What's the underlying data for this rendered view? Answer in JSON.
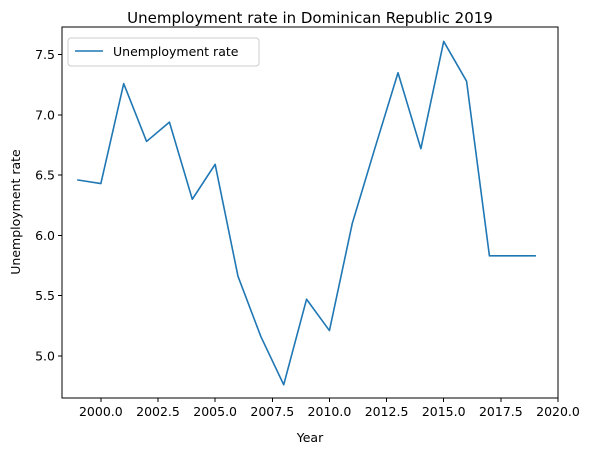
{
  "chart_data": {
    "type": "line",
    "title": "Unemployment rate in Dominican Republic 2019",
    "xlabel": "Year",
    "ylabel": "Unemployment rate",
    "xlim": [
      1998.3,
      2020.0
    ],
    "ylim": [
      4.65,
      7.73
    ],
    "xticks": [
      2000.0,
      2002.5,
      2005.0,
      2007.5,
      2010.0,
      2012.5,
      2015.0,
      2017.5,
      2020.0
    ],
    "xtick_labels": [
      "2000.0",
      "2002.5",
      "2005.0",
      "2007.5",
      "2010.0",
      "2012.5",
      "2015.0",
      "2017.5",
      "2020.0"
    ],
    "yticks": [
      5.0,
      5.5,
      6.0,
      6.5,
      7.0,
      7.5
    ],
    "ytick_labels": [
      "5.0",
      "5.5",
      "6.0",
      "6.5",
      "7.0",
      "7.5"
    ],
    "legend_position": "upper-left",
    "grid": false,
    "series": [
      {
        "name": "Unemployment rate",
        "color": "#1f77b4",
        "x": [
          1999,
          2000,
          2001,
          2002,
          2003,
          2004,
          2005,
          2006,
          2007,
          2008,
          2009,
          2010,
          2011,
          2012,
          2013,
          2014,
          2015,
          2016,
          2017,
          2018,
          2019
        ],
        "y": [
          6.46,
          6.43,
          7.26,
          6.78,
          6.94,
          6.3,
          6.59,
          5.66,
          5.16,
          4.76,
          5.47,
          5.21,
          6.1,
          6.73,
          7.35,
          6.72,
          7.61,
          7.28,
          5.83,
          5.83,
          5.83
        ]
      }
    ]
  }
}
